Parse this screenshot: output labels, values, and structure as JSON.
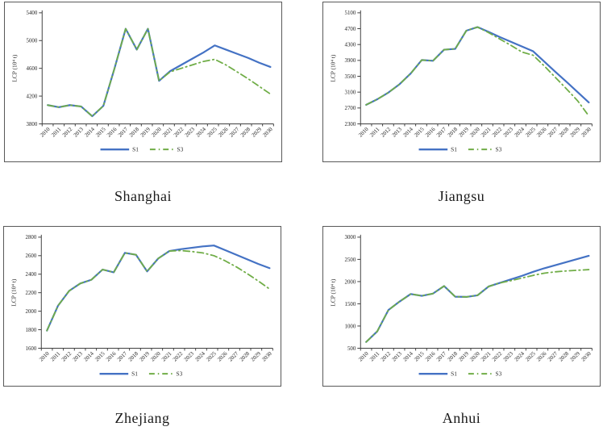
{
  "figure": {
    "ylabel": "LCP (10⁴ t)",
    "series_colors": {
      "s1": "#4472c4",
      "s3": "#70ad47"
    },
    "axis_color": "#404040",
    "text_color": "#262626"
  },
  "chart_data": [
    {
      "type": "line",
      "title": "Shanghai",
      "ylabel": "LCP (10⁴ t)",
      "ylim": [
        3800,
        5400
      ],
      "ytick_step": 400,
      "legend": [
        "S1",
        "S3"
      ],
      "legend_position": "bottom",
      "grid": false,
      "years": [
        2010,
        2011,
        2012,
        2013,
        2014,
        2015,
        2016,
        2017,
        2018,
        2019,
        2020,
        2021,
        2022,
        2023,
        2024,
        2025,
        2026,
        2027,
        2028,
        2029,
        2030
      ],
      "series": [
        {
          "name": "S1",
          "style": "solid",
          "color": "#4472c4",
          "values": [
            4070,
            4040,
            4070,
            4050,
            3910,
            4060,
            4600,
            5170,
            4870,
            5170,
            4420,
            4560,
            4650,
            4740,
            4830,
            4930,
            4870,
            4810,
            4750,
            4680,
            4620
          ]
        },
        {
          "name": "S3",
          "style": "dashdot",
          "color": "#70ad47",
          "values": [
            4070,
            4040,
            4070,
            4050,
            3910,
            4060,
            4600,
            5170,
            4870,
            5170,
            4420,
            4550,
            4600,
            4650,
            4700,
            4730,
            4650,
            4550,
            4450,
            4340,
            4230
          ]
        }
      ]
    },
    {
      "type": "line",
      "title": "Jiangsu",
      "ylabel": "LCP (10⁴ t)",
      "ylim": [
        2300,
        5100
      ],
      "ytick_step": 400,
      "legend": [
        "S1",
        "S3"
      ],
      "legend_position": "bottom",
      "grid": false,
      "years": [
        2010,
        2011,
        2012,
        2013,
        2014,
        2015,
        2016,
        2017,
        2018,
        2019,
        2020,
        2021,
        2022,
        2023,
        2024,
        2025,
        2026,
        2027,
        2028,
        2029,
        2030
      ],
      "series": [
        {
          "name": "S1",
          "style": "solid",
          "color": "#4472c4",
          "values": [
            2780,
            2920,
            3090,
            3300,
            3570,
            3910,
            3890,
            4170,
            4190,
            4650,
            4740,
            4620,
            4490,
            4370,
            4250,
            4130,
            3870,
            3610,
            3360,
            3100,
            2840
          ]
        },
        {
          "name": "S3",
          "style": "dashdot",
          "color": "#70ad47",
          "values": [
            2780,
            2920,
            3090,
            3300,
            3570,
            3910,
            3890,
            4170,
            4190,
            4650,
            4740,
            4600,
            4440,
            4280,
            4110,
            4030,
            3760,
            3470,
            3180,
            2880,
            2500
          ]
        }
      ]
    },
    {
      "type": "line",
      "title": "Zhejiang",
      "ylabel": "LCP (10⁴ t)",
      "ylim": [
        1600,
        2800
      ],
      "ytick_step": 200,
      "legend": [
        "S1",
        "S3"
      ],
      "legend_position": "bottom",
      "grid": false,
      "years": [
        2010,
        2011,
        2012,
        2013,
        2014,
        2015,
        2016,
        2017,
        2018,
        2019,
        2020,
        2021,
        2022,
        2023,
        2024,
        2025,
        2026,
        2027,
        2028,
        2029,
        2030
      ],
      "series": [
        {
          "name": "S1",
          "style": "solid",
          "color": "#4472c4",
          "values": [
            1790,
            2060,
            2220,
            2300,
            2340,
            2450,
            2420,
            2630,
            2610,
            2430,
            2570,
            2650,
            2670,
            2685,
            2700,
            2710,
            2660,
            2610,
            2560,
            2510,
            2465
          ]
        },
        {
          "name": "S3",
          "style": "dashdot",
          "color": "#70ad47",
          "values": [
            1790,
            2060,
            2220,
            2300,
            2340,
            2450,
            2420,
            2630,
            2610,
            2430,
            2570,
            2650,
            2655,
            2645,
            2630,
            2600,
            2545,
            2480,
            2405,
            2325,
            2240
          ]
        }
      ]
    },
    {
      "type": "line",
      "title": "Anhui",
      "ylabel": "LCP (10⁴ t)",
      "ylim": [
        500,
        3000
      ],
      "ytick_step": 500,
      "legend": [
        "S1",
        "S3"
      ],
      "legend_position": "bottom",
      "grid": false,
      "years": [
        2010,
        2011,
        2012,
        2013,
        2014,
        2015,
        2016,
        2017,
        2018,
        2019,
        2020,
        2021,
        2022,
        2023,
        2024,
        2025,
        2026,
        2027,
        2028,
        2029,
        2030
      ],
      "series": [
        {
          "name": "S1",
          "style": "solid",
          "color": "#4472c4",
          "values": [
            640,
            880,
            1360,
            1550,
            1720,
            1680,
            1730,
            1900,
            1660,
            1655,
            1690,
            1890,
            1970,
            2050,
            2130,
            2220,
            2300,
            2370,
            2440,
            2510,
            2580
          ]
        },
        {
          "name": "S3",
          "style": "dashdot",
          "color": "#70ad47",
          "values": [
            640,
            880,
            1360,
            1550,
            1720,
            1680,
            1730,
            1900,
            1660,
            1655,
            1690,
            1890,
            1970,
            2020,
            2080,
            2140,
            2190,
            2220,
            2240,
            2255,
            2270
          ]
        }
      ]
    }
  ]
}
